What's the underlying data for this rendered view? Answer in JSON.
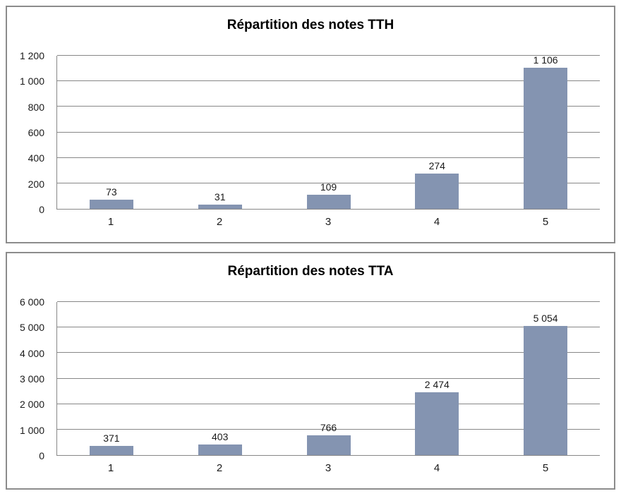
{
  "styles": {
    "bar_color": "#8494b1",
    "grid_color": "#878787",
    "panel_border_color": "#8c8c8c",
    "background_color": "#ffffff",
    "text_color": "#1a1a1a"
  },
  "chart_data": [
    {
      "type": "bar",
      "title": "Répartition des notes TTH",
      "categories": [
        "1",
        "2",
        "3",
        "4",
        "5"
      ],
      "values": [
        73,
        31,
        109,
        274,
        1106
      ],
      "data_labels": [
        "73",
        "31",
        "109",
        "274",
        "1 106"
      ],
      "xlabel": "",
      "ylabel": "",
      "ylim": [
        0,
        1200
      ],
      "grid": true,
      "legend": "none",
      "bar_color": "#8494b1",
      "y_ticks": [
        {
          "value": 0,
          "label": "0"
        },
        {
          "value": 200,
          "label": "200"
        },
        {
          "value": 400,
          "label": "400"
        },
        {
          "value": 600,
          "label": "600"
        },
        {
          "value": 800,
          "label": "800"
        },
        {
          "value": 1000,
          "label": "1 000"
        },
        {
          "value": 1200,
          "label": "1 200"
        }
      ]
    },
    {
      "type": "bar",
      "title": "Répartition des notes TTA",
      "categories": [
        "1",
        "2",
        "3",
        "4",
        "5"
      ],
      "values": [
        371,
        403,
        766,
        2474,
        5054
      ],
      "data_labels": [
        "371",
        "403",
        "766",
        "2 474",
        "5 054"
      ],
      "xlabel": "",
      "ylabel": "",
      "ylim": [
        0,
        6000
      ],
      "grid": true,
      "legend": "none",
      "bar_color": "#8494b1",
      "y_ticks": [
        {
          "value": 0,
          "label": "0"
        },
        {
          "value": 1000,
          "label": "1 000"
        },
        {
          "value": 2000,
          "label": "2 000"
        },
        {
          "value": 3000,
          "label": "3 000"
        },
        {
          "value": 4000,
          "label": "4 000"
        },
        {
          "value": 5000,
          "label": "5 000"
        },
        {
          "value": 6000,
          "label": "6 000"
        }
      ]
    }
  ]
}
